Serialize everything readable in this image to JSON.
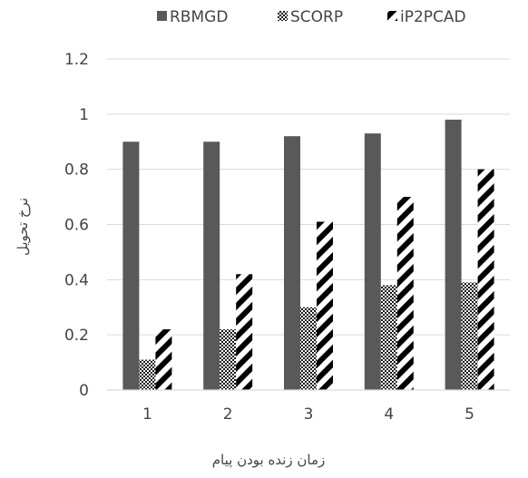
{
  "chart_data": {
    "type": "bar",
    "categories": [
      "1",
      "2",
      "3",
      "4",
      "5"
    ],
    "series": [
      {
        "name": "RBMGD",
        "values": [
          0.9,
          0.9,
          0.92,
          0.93,
          0.98
        ],
        "color": "#595959",
        "pattern": "solid"
      },
      {
        "name": "SCORP",
        "values": [
          0.11,
          0.22,
          0.3,
          0.38,
          0.39
        ],
        "color": "#222222",
        "pattern": "dots"
      },
      {
        "name": "iP2PCAD",
        "values": [
          0.22,
          0.42,
          0.61,
          0.7,
          0.8
        ],
        "color": "#000000",
        "pattern": "diagonal-stripes"
      }
    ],
    "title": "",
    "xlabel": "زمان زنده بودن پیام",
    "ylabel": "نرخ تحویل",
    "ylim": [
      0,
      1.2
    ],
    "yticks": [
      "0",
      "0.2",
      "0.4",
      "0.6",
      "0.8",
      "1",
      "1.2"
    ],
    "grid": true,
    "legend_position": "top"
  }
}
